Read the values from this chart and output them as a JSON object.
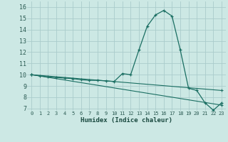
{
  "xlabel": "Humidex (Indice chaleur)",
  "background_color": "#cce8e4",
  "grid_color": "#aacccc",
  "line_color": "#1a6e62",
  "xlim": [
    -0.5,
    23.5
  ],
  "ylim": [
    6.8,
    16.5
  ],
  "xticks": [
    0,
    1,
    2,
    3,
    4,
    5,
    6,
    7,
    8,
    9,
    10,
    11,
    12,
    13,
    14,
    15,
    16,
    17,
    18,
    19,
    20,
    21,
    22,
    23
  ],
  "yticks": [
    7,
    8,
    9,
    10,
    11,
    12,
    13,
    14,
    15,
    16
  ],
  "series1": {
    "x": [
      0,
      1,
      2,
      3,
      4,
      5,
      6,
      7,
      8,
      9,
      10,
      11,
      12,
      13,
      14,
      15,
      16,
      17,
      18,
      19,
      20,
      21,
      22,
      23
    ],
    "y": [
      10.0,
      9.9,
      9.8,
      9.75,
      9.7,
      9.65,
      9.55,
      9.5,
      9.5,
      9.45,
      9.4,
      10.1,
      10.0,
      12.2,
      14.3,
      15.3,
      15.7,
      15.2,
      12.2,
      8.8,
      8.6,
      7.5,
      6.85,
      7.5
    ]
  },
  "series2": {
    "x": [
      0,
      23
    ],
    "y": [
      10.0,
      8.6
    ]
  },
  "series3": {
    "x": [
      0,
      23
    ],
    "y": [
      10.0,
      7.3
    ]
  }
}
